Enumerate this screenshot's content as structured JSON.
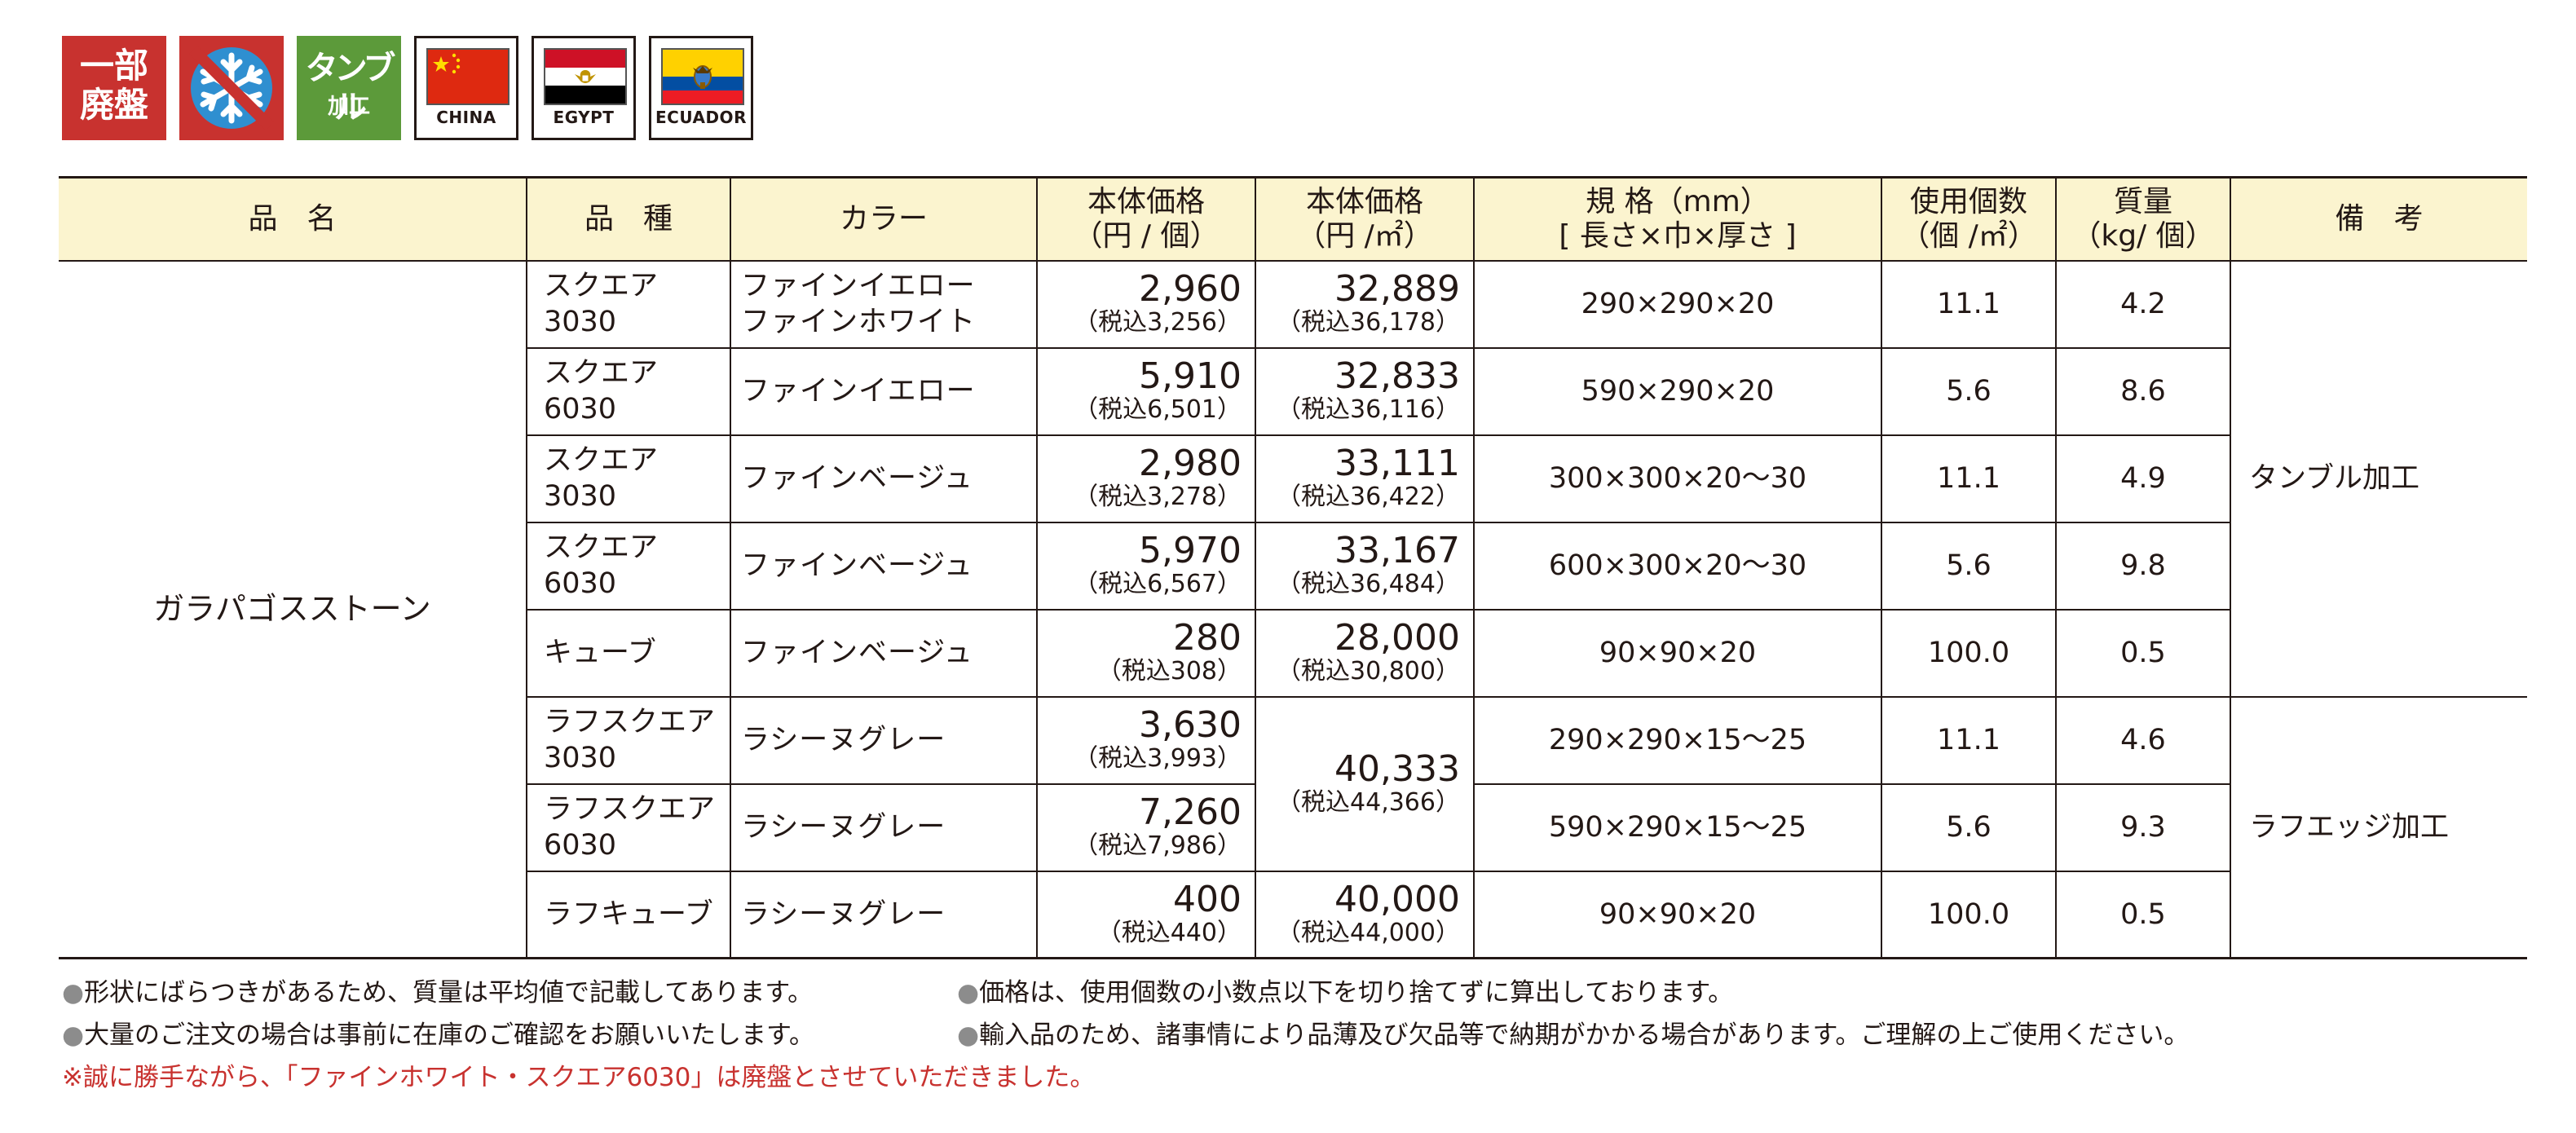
{
  "badges": {
    "discontinued": {
      "line1": "一部",
      "line2": "廃盤"
    },
    "freeze_icon": "snowflake-prohibited-icon",
    "tumble": {
      "line1": "タンブル",
      "line2": "加工"
    },
    "origins": [
      "CHINA",
      "EGYPT",
      "ECUADOR"
    ],
    "colors": {
      "red": "#c8322f",
      "green": "#5c9a3a",
      "header_bg": "#fbf4cf"
    }
  },
  "table": {
    "headers": {
      "name": "品　名",
      "kind": "品　種",
      "color": "カラー",
      "price_unit_1": "本体価格",
      "price_unit_2": "（円 / 個）",
      "price_m2_1": "本体価格",
      "price_m2_2": "（円 /㎡）",
      "size_1": "規 格（mm）",
      "size_2": "[ 長さ×巾×厚さ ]",
      "qty_1": "使用個数",
      "qty_2": "（個 /㎡）",
      "weight_1": "質量",
      "weight_2": "（kg/ 個）",
      "remarks": "備　考"
    },
    "product_name": "ガラパゴスストーン",
    "rows": [
      {
        "kind1": "スクエア",
        "kind2": "3030",
        "color1": "ファインイエロー",
        "color2": "ファインホワイト",
        "price": "2,960",
        "price_tax": "（税込3,256）",
        "price_m2": "32,889",
        "price_m2_tax": "（税込36,178）",
        "size": "290×290×20",
        "qty": "11.1",
        "weight": "4.2"
      },
      {
        "kind1": "スクエア",
        "kind2": "6030",
        "color1": "ファインイエロー",
        "color2": "",
        "price": "5,910",
        "price_tax": "（税込6,501）",
        "price_m2": "32,833",
        "price_m2_tax": "（税込36,116）",
        "size": "590×290×20",
        "qty": "5.6",
        "weight": "8.6"
      },
      {
        "kind1": "スクエア",
        "kind2": "3030",
        "color1": "ファインベージュ",
        "color2": "",
        "price": "2,980",
        "price_tax": "（税込3,278）",
        "price_m2": "33,111",
        "price_m2_tax": "（税込36,422）",
        "size": "300×300×20～30",
        "qty": "11.1",
        "weight": "4.9"
      },
      {
        "kind1": "スクエア",
        "kind2": "6030",
        "color1": "ファインベージュ",
        "color2": "",
        "price": "5,970",
        "price_tax": "（税込6,567）",
        "price_m2": "33,167",
        "price_m2_tax": "（税込36,484）",
        "size": "600×300×20～30",
        "qty": "5.6",
        "weight": "9.8"
      },
      {
        "kind1": "キューブ",
        "kind2": "",
        "color1": "ファインベージュ",
        "color2": "",
        "price": "280",
        "price_tax": "（税込308）",
        "price_m2": "28,000",
        "price_m2_tax": "（税込30,800）",
        "size": "90×90×20",
        "qty": "100.0",
        "weight": "0.5"
      },
      {
        "kind1": "ラフスクエア",
        "kind2": "3030",
        "color1": "ラシーヌグレー",
        "color2": "",
        "price": "3,630",
        "price_tax": "（税込3,993）",
        "size": "290×290×15～25",
        "qty": "11.1",
        "weight": "4.6"
      },
      {
        "kind1": "ラフスクエア",
        "kind2": "6030",
        "color1": "ラシーヌグレー",
        "color2": "",
        "price": "7,260",
        "price_tax": "（税込7,986）",
        "size": "590×290×15～25",
        "qty": "5.6",
        "weight": "9.3"
      },
      {
        "kind1": "ラフキューブ",
        "kind2": "",
        "color1": "ラシーヌグレー",
        "color2": "",
        "price": "400",
        "price_tax": "（税込440）",
        "price_m2": "40,000",
        "price_m2_tax": "（税込44,000）",
        "size": "90×90×20",
        "qty": "100.0",
        "weight": "0.5"
      }
    ],
    "rough_shared_price_m2": "40,333",
    "rough_shared_price_m2_tax": "（税込44,366）",
    "remarks_tumble": "タンブル加工",
    "remarks_rough": "ラフエッジ加工"
  },
  "notes": {
    "bullet": "●",
    "n1": "形状にばらつきがあるため、質量は平均値で記載してあります。",
    "n2": "価格は、使用個数の小数点以下を切り捨てずに算出しております。",
    "n3": "大量のご注文の場合は事前に在庫のご確認をお願いいたします。",
    "n4": "輸入品のため、諸事情により品薄及び欠品等で納期がかかる場合があります。ご理解の上ご使用ください。",
    "red_note": "※誠に勝手ながら、「ファインホワイト・スクエア6030」は廃盤とさせていただきました。"
  }
}
